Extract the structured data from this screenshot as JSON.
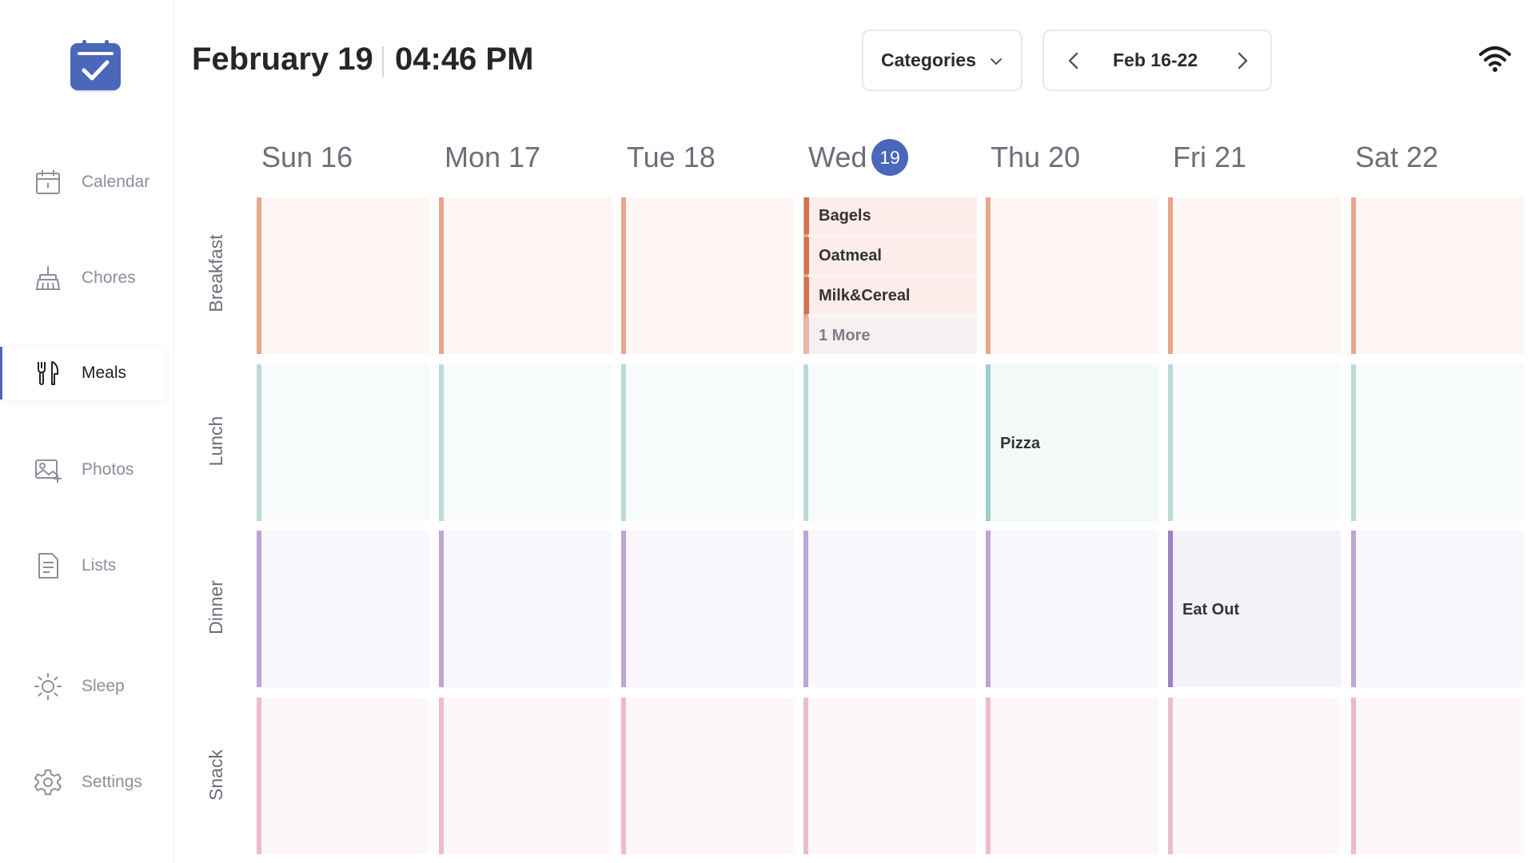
{
  "sidebar": {
    "items": [
      {
        "id": "calendar",
        "label": "Calendar",
        "icon": "calendar-icon"
      },
      {
        "id": "chores",
        "label": "Chores",
        "icon": "broom-icon"
      },
      {
        "id": "meals",
        "label": "Meals",
        "icon": "utensils-icon",
        "active": true
      },
      {
        "id": "photos",
        "label": "Photos",
        "icon": "photo-add-icon"
      },
      {
        "id": "lists",
        "label": "Lists",
        "icon": "list-document-icon"
      },
      {
        "id": "sleep",
        "label": "Sleep",
        "icon": "sun-icon"
      },
      {
        "id": "settings",
        "label": "Settings",
        "icon": "gear-icon"
      }
    ]
  },
  "header": {
    "date": "February 19",
    "time": "04:46 PM",
    "categories_label": "Categories",
    "week_label": "Feb 16-22"
  },
  "days": [
    "Sun 16",
    "Mon 17",
    "Tue 18",
    "Wed",
    "Thu 20",
    "Fri 21",
    "Sat 22"
  ],
  "today_badge": "19",
  "meal_rows": [
    {
      "label": "Breakfast",
      "bar_color": "#e9a68a",
      "bg_color": "#fdf6f2"
    },
    {
      "label": "Lunch",
      "bar_color": "#bcdad8",
      "bg_color": "#f7fbfb"
    },
    {
      "label": "Dinner",
      "bar_color": "#bba6d4",
      "bg_color": "#f9f7fc"
    },
    {
      "label": "Snack",
      "bar_color": "#edbcc8",
      "bg_color": "#fdf7f9"
    }
  ],
  "entries": {
    "wed_breakfast": [
      "Bagels",
      "Oatmeal",
      "Milk&Cereal"
    ],
    "wed_breakfast_more": "1 More",
    "thu_lunch": "Pizza",
    "fri_dinner": "Eat Out"
  },
  "colors": {
    "accent": "#4a67b9",
    "entry_bar": "#d66f4f",
    "entry_bg": "#fcecea",
    "more_bar": "#e9b6a8",
    "more_bg": "#f7f0f0",
    "pizza_bar": "#9ccdc9",
    "pizza_bg": "#f3f9f8",
    "eatout_bar": "#9b82c4",
    "eatout_bg": "#f4f1f9"
  }
}
